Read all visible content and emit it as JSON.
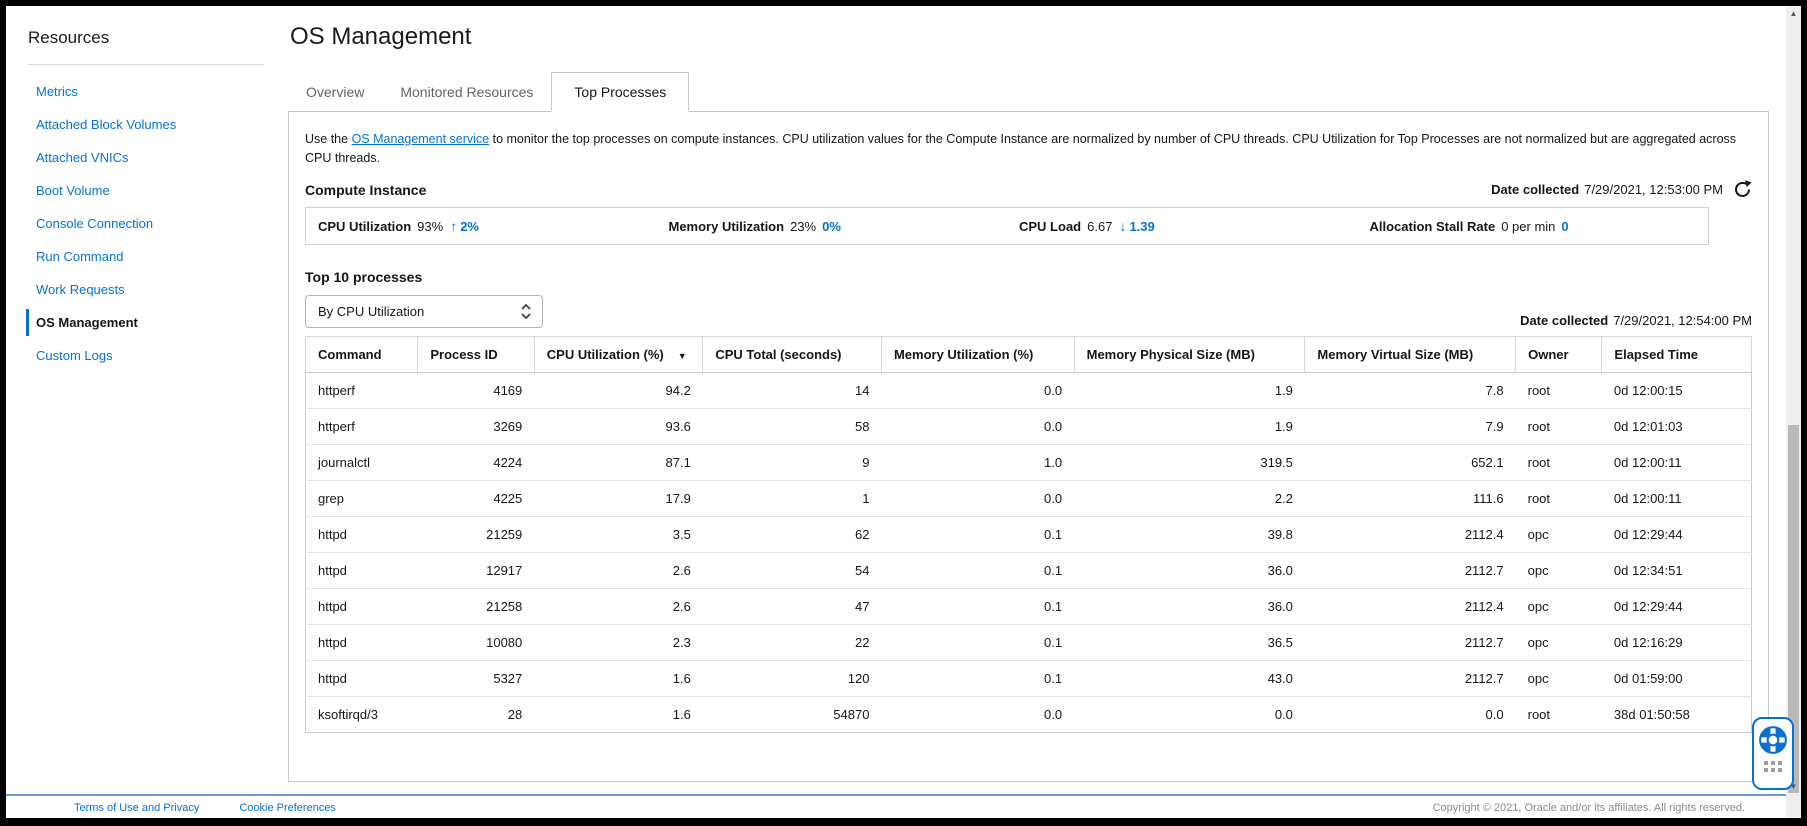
{
  "sidebar": {
    "title": "Resources",
    "items": [
      {
        "label": "Metrics",
        "active": false
      },
      {
        "label": "Attached Block Volumes",
        "active": false
      },
      {
        "label": "Attached VNICs",
        "active": false
      },
      {
        "label": "Boot Volume",
        "active": false
      },
      {
        "label": "Console Connection",
        "active": false
      },
      {
        "label": "Run Command",
        "active": false
      },
      {
        "label": "Work Requests",
        "active": false
      },
      {
        "label": "OS Management",
        "active": true
      },
      {
        "label": "Custom Logs",
        "active": false
      }
    ]
  },
  "header": {
    "title": "OS Management"
  },
  "tabs": [
    {
      "label": "Overview",
      "active": false
    },
    {
      "label": "Monitored Resources",
      "active": false
    },
    {
      "label": "Top Processes",
      "active": true
    }
  ],
  "intro": {
    "prefix": "Use the ",
    "link": "OS Management service",
    "suffix": " to monitor the top processes on compute instances. CPU utilization values for the Compute Instance are normalized by number of CPU threads. CPU Utilization for Top Processes are not normalized but are aggregated across CPU threads."
  },
  "compute_instance": {
    "heading": "Compute Instance",
    "date_collected_label": "Date collected",
    "date_collected_value": "7/29/2021, 12:53:00 PM",
    "stats": [
      {
        "label": "CPU Utilization",
        "value": "93%",
        "arrow": "↑",
        "direction": "up",
        "delta": "2%"
      },
      {
        "label": "Memory Utilization",
        "value": "23%",
        "arrow": "",
        "direction": "none",
        "delta": "0%"
      },
      {
        "label": "CPU Load",
        "value": "6.67",
        "arrow": "↓",
        "direction": "down",
        "delta": "1.39"
      },
      {
        "label": "Allocation Stall Rate",
        "value": "0 per min",
        "arrow": "",
        "direction": "none",
        "delta": "0"
      }
    ]
  },
  "top_processes": {
    "heading": "Top 10 processes",
    "sort_dropdown": {
      "value": "By CPU Utilization"
    },
    "date_collected_label": "Date collected",
    "date_collected_value": "7/29/2021, 12:54:00 PM",
    "table": {
      "columns": [
        "Command",
        "Process ID",
        "CPU Utilization (%)",
        "CPU Total (seconds)",
        "Memory Utilization (%)",
        "Memory Physical Size (MB)",
        "Memory Virtual Size (MB)",
        "Owner",
        "Elapsed Time"
      ],
      "sorted_column": "CPU Utilization (%)",
      "sort_direction": "descending",
      "rows": [
        [
          "httperf",
          "4169",
          "94.2",
          "14",
          "0.0",
          "1.9",
          "7.8",
          "root",
          "0d 12:00:15"
        ],
        [
          "httperf",
          "3269",
          "93.6",
          "58",
          "0.0",
          "1.9",
          "7.9",
          "root",
          "0d 12:01:03"
        ],
        [
          "journalctl",
          "4224",
          "87.1",
          "9",
          "1.0",
          "319.5",
          "652.1",
          "root",
          "0d 12:00:11"
        ],
        [
          "grep",
          "4225",
          "17.9",
          "1",
          "0.0",
          "2.2",
          "111.6",
          "root",
          "0d 12:00:11"
        ],
        [
          "httpd",
          "21259",
          "3.5",
          "62",
          "0.1",
          "39.8",
          "2112.4",
          "opc",
          "0d 12:29:44"
        ],
        [
          "httpd",
          "12917",
          "2.6",
          "54",
          "0.1",
          "36.0",
          "2112.7",
          "opc",
          "0d 12:34:51"
        ],
        [
          "httpd",
          "21258",
          "2.6",
          "47",
          "0.1",
          "36.0",
          "2112.4",
          "opc",
          "0d 12:29:44"
        ],
        [
          "httpd",
          "10080",
          "2.3",
          "22",
          "0.1",
          "36.5",
          "2112.7",
          "opc",
          "0d 12:16:29"
        ],
        [
          "httpd",
          "5327",
          "1.6",
          "120",
          "0.1",
          "43.0",
          "2112.7",
          "opc",
          "0d 01:59:00"
        ],
        [
          "ksoftirqd/3",
          "28",
          "1.6",
          "54870",
          "0.0",
          "0.0",
          "0.0",
          "root",
          "38d 01:50:58"
        ]
      ]
    }
  },
  "footer": {
    "links": [
      "Terms of Use and Privacy",
      "Cookie Preferences"
    ],
    "copyright": "Copyright © 2021, Oracle and/or its affiliates. All rights reserved."
  },
  "icons": {
    "refresh": "refresh-icon",
    "sort_caret": "caret-down-icon",
    "select_chevrons": "chevrons-up-down-icon",
    "help": "life-ring-icon"
  },
  "colors": {
    "accent": "#0572d3",
    "footer_line": "#6a9bd8"
  }
}
